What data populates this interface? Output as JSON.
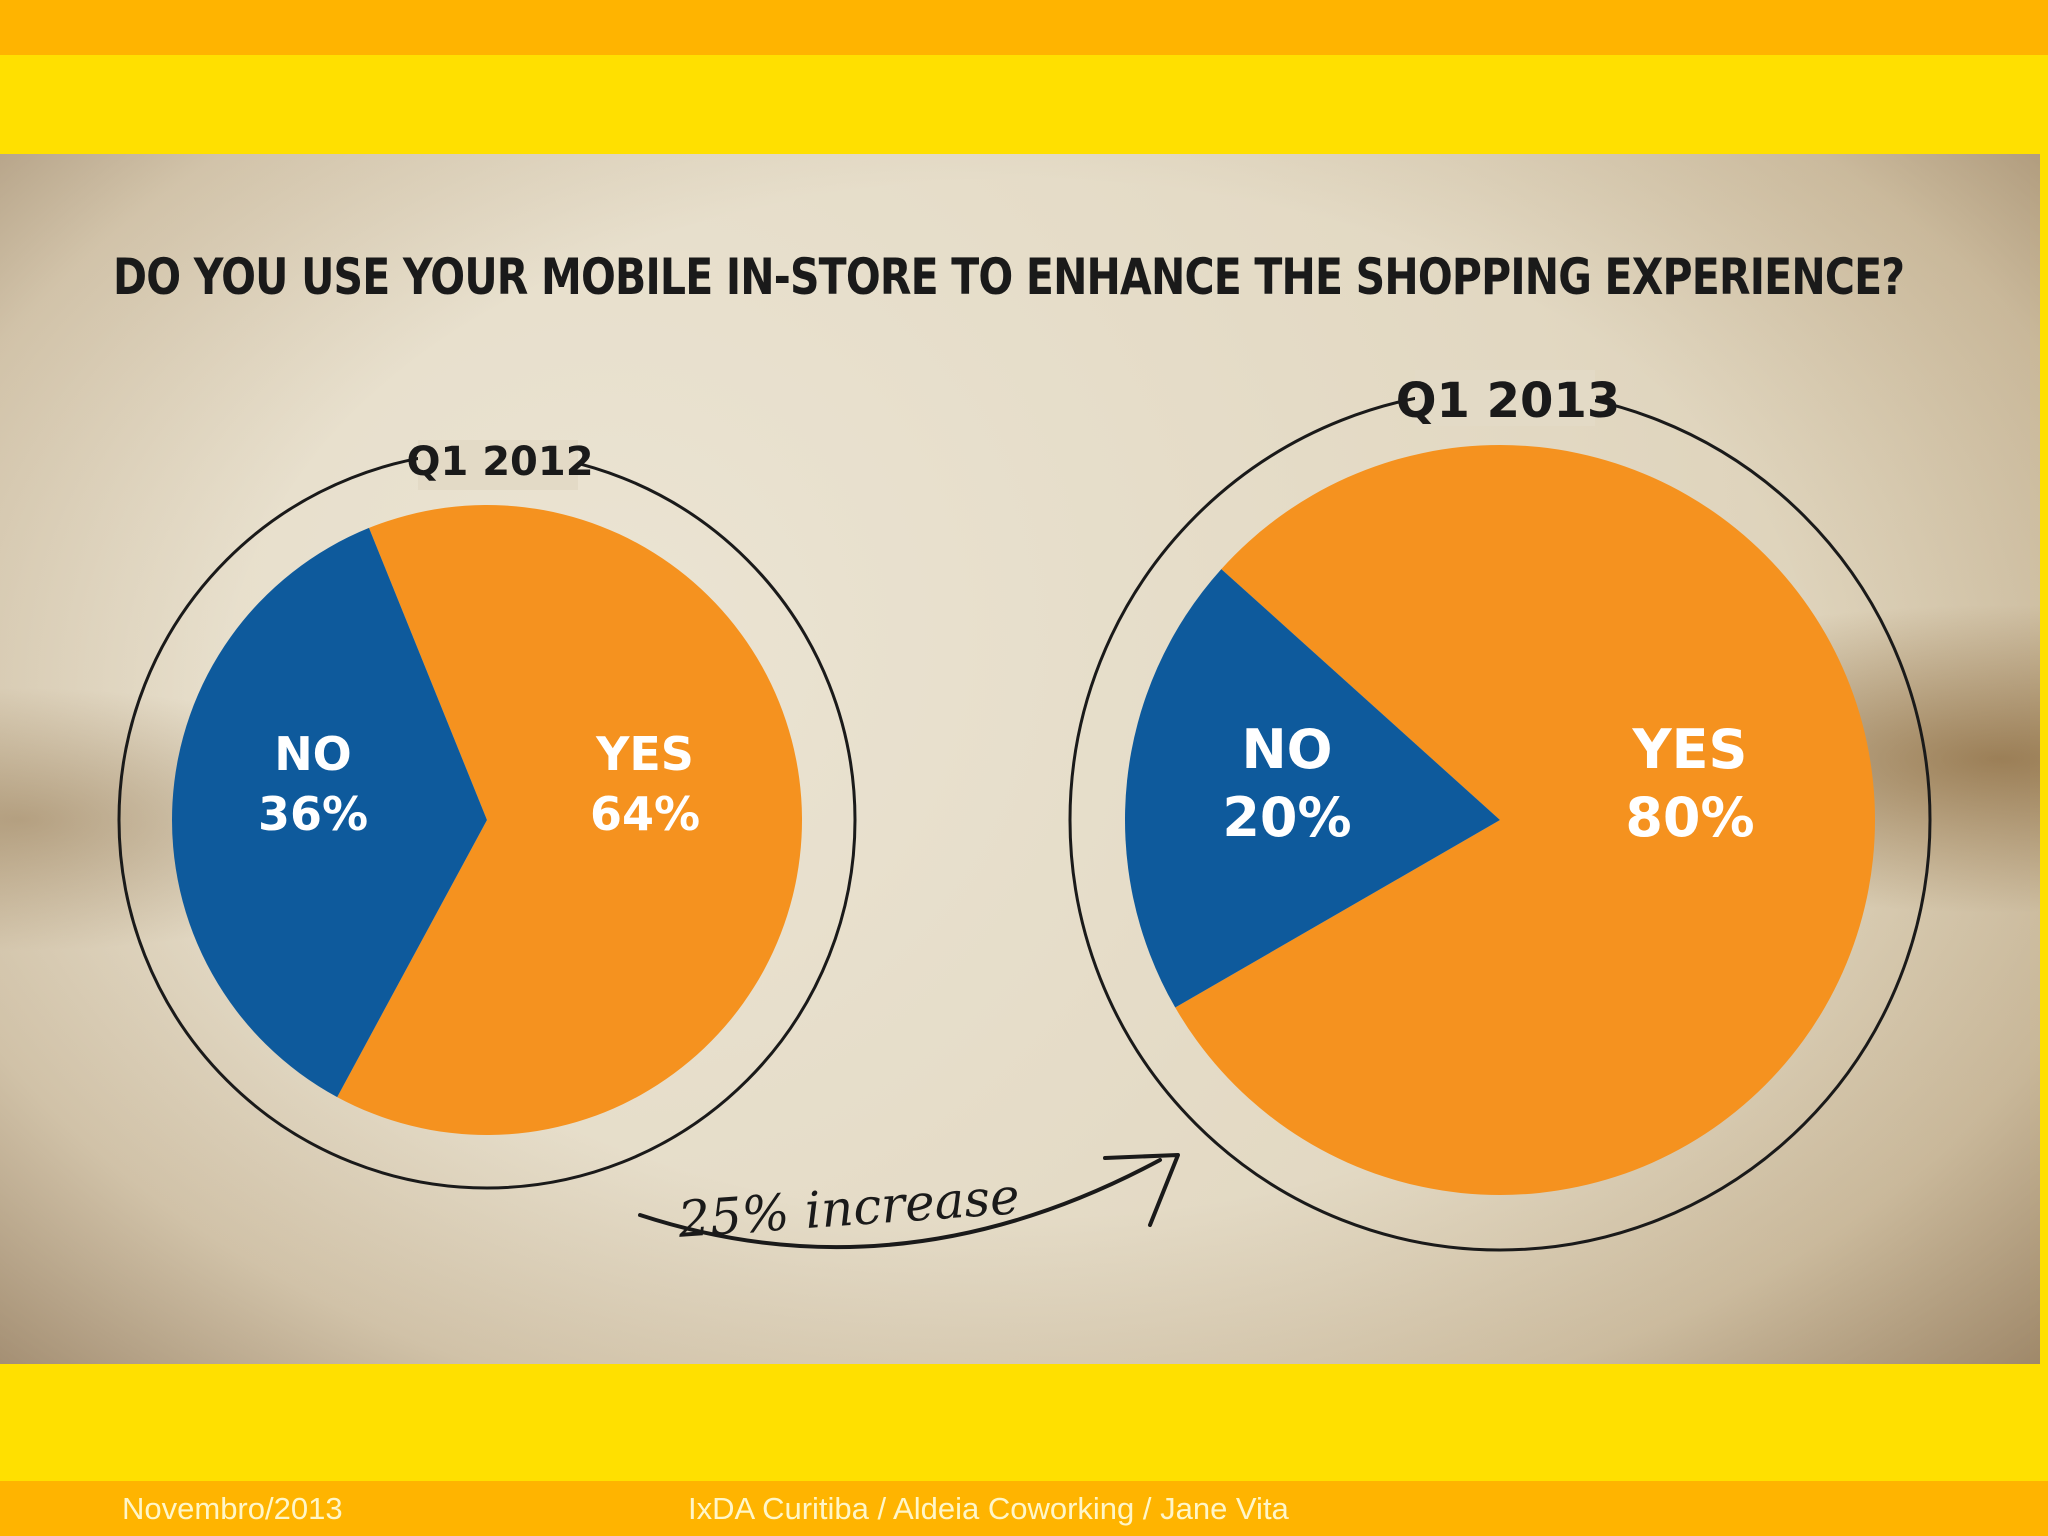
{
  "footer": {
    "date": "Novembro/2013",
    "credits": "IxDA Curitiba / Aldeia Coworking / Jane Vita"
  },
  "colors": {
    "yes": "#F5921F",
    "no": "#0E5A9C",
    "band_orange": "#FFB400",
    "band_yellow": "#FFE000"
  },
  "chart_data": [
    {
      "type": "pie",
      "title": "DO YOU USE YOUR MOBILE IN-STORE TO ENHANCE THE SHOPPING EXPERIENCE?",
      "period": "Q1 2012",
      "slices": [
        {
          "category": "YES",
          "value": 64,
          "label": "64%"
        },
        {
          "category": "NO",
          "value": 36,
          "label": "36%"
        }
      ]
    },
    {
      "type": "pie",
      "title": "DO YOU USE YOUR MOBILE IN-STORE TO ENHANCE THE SHOPPING EXPERIENCE?",
      "period": "Q1 2013",
      "slices": [
        {
          "category": "YES",
          "value": 80,
          "label": "80%"
        },
        {
          "category": "NO",
          "value": 20,
          "label": "20%"
        }
      ]
    }
  ],
  "annotation": "25% increase"
}
